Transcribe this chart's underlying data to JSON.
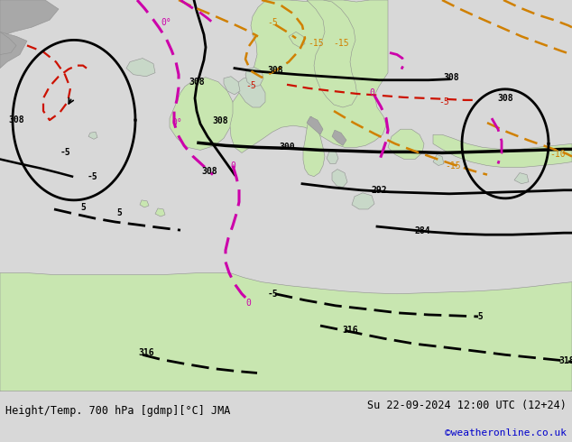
{
  "title_left": "Height/Temp. 700 hPa [gdmp][°C] JMA",
  "title_right": "Su 22-09-2024 12:00 UTC (12+24)",
  "credit": "©weatheronline.co.uk",
  "ocean_color": "#d8d8d8",
  "land_color": "#c8e6b0",
  "highland_color": "#a8a8a8",
  "footer_bg": "#d8d8d8",
  "map_bg": "#d0d0d0"
}
